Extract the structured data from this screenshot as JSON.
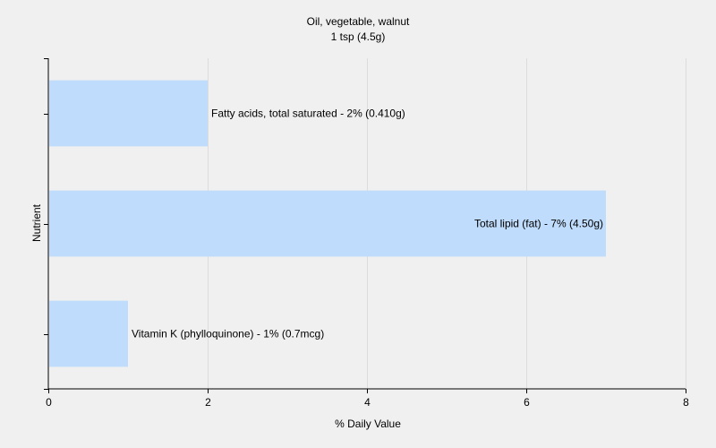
{
  "chart_data": {
    "type": "bar",
    "orientation": "horizontal",
    "title": "Oil, vegetable, walnut",
    "subtitle": "1 tsp (4.5g)",
    "xlabel": "% Daily Value",
    "ylabel": "Nutrient",
    "xlim": [
      0,
      8
    ],
    "xticks": [
      0,
      2,
      4,
      6,
      8
    ],
    "grid": true,
    "bar_color": "#c0dcfc",
    "categories": [
      "Fatty acids, total saturated",
      "Total lipid (fat)",
      "Vitamin K (phylloquinone)"
    ],
    "values": [
      2,
      7,
      1
    ],
    "labels": [
      "Fatty acids, total saturated - 2% (0.410g)",
      "Total lipid (fat) - 7% (4.50g)",
      "Vitamin K (phylloquinone) - 1% (0.7mcg)"
    ]
  }
}
